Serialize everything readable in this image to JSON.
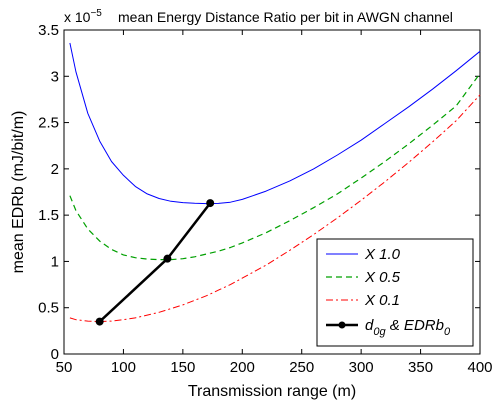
{
  "chart_data": {
    "type": "line",
    "title": "mean Energy Distance Ratio per bit in AWGN channel",
    "scale_note": {
      "base": "x 10",
      "exponent": "−5"
    },
    "xlabel": "Transmission range (m)",
    "ylabel": "mean EDRb (mJ/bit/m)",
    "xlim": [
      50,
      400
    ],
    "ylim": [
      0,
      3.5
    ],
    "xticks": [
      "50",
      "100",
      "150",
      "200",
      "250",
      "300",
      "350",
      "400"
    ],
    "yticks": [
      "0",
      "0.5",
      "1",
      "1.5",
      "2",
      "2.5",
      "3",
      "3.5"
    ],
    "grid": false,
    "legend_position": "bottom-right",
    "series": [
      {
        "name": "X 1.0",
        "color": "#0000ff",
        "style": "solid",
        "x": [
          55,
          60,
          70,
          80,
          90,
          100,
          110,
          120,
          130,
          140,
          150,
          160,
          170,
          180,
          190,
          200,
          220,
          240,
          260,
          280,
          300,
          320,
          340,
          360,
          380,
          400
        ],
        "y": [
          3.36,
          3.05,
          2.6,
          2.3,
          2.08,
          1.93,
          1.81,
          1.73,
          1.68,
          1.65,
          1.635,
          1.628,
          1.625,
          1.627,
          1.64,
          1.67,
          1.76,
          1.87,
          2.0,
          2.15,
          2.31,
          2.49,
          2.67,
          2.86,
          3.06,
          3.27
        ]
      },
      {
        "name": "X 0.5",
        "color": "#00a000",
        "style": "dashed",
        "x": [
          55,
          60,
          70,
          80,
          90,
          100,
          110,
          120,
          130,
          140,
          150,
          160,
          170,
          180,
          190,
          200,
          220,
          240,
          260,
          280,
          300,
          320,
          340,
          360,
          380,
          400
        ],
        "y": [
          1.71,
          1.55,
          1.35,
          1.22,
          1.13,
          1.07,
          1.04,
          1.025,
          1.02,
          1.02,
          1.03,
          1.05,
          1.08,
          1.11,
          1.15,
          1.2,
          1.31,
          1.44,
          1.58,
          1.73,
          1.9,
          2.08,
          2.27,
          2.47,
          2.68,
          3.03
        ]
      },
      {
        "name": "X 0.1",
        "color": "#ff0000",
        "style": "dashdot",
        "x": [
          55,
          60,
          70,
          80,
          90,
          100,
          110,
          120,
          130,
          140,
          150,
          160,
          170,
          180,
          190,
          200,
          220,
          240,
          260,
          280,
          300,
          320,
          340,
          360,
          380,
          400
        ],
        "y": [
          0.39,
          0.37,
          0.355,
          0.35,
          0.355,
          0.37,
          0.39,
          0.42,
          0.45,
          0.49,
          0.53,
          0.58,
          0.63,
          0.69,
          0.75,
          0.82,
          0.96,
          1.12,
          1.29,
          1.47,
          1.66,
          1.86,
          2.07,
          2.29,
          2.52,
          2.8
        ]
      },
      {
        "name": "d_0g & EDRb_0",
        "legend_parts": {
          "a": "d",
          "a_sub": "0g",
          "mid": " & EDRb",
          "b_sub": "0"
        },
        "color": "#000000",
        "style": "solid-bold-markers",
        "x": [
          80,
          137,
          173
        ],
        "y": [
          0.35,
          1.03,
          1.63
        ]
      }
    ]
  }
}
